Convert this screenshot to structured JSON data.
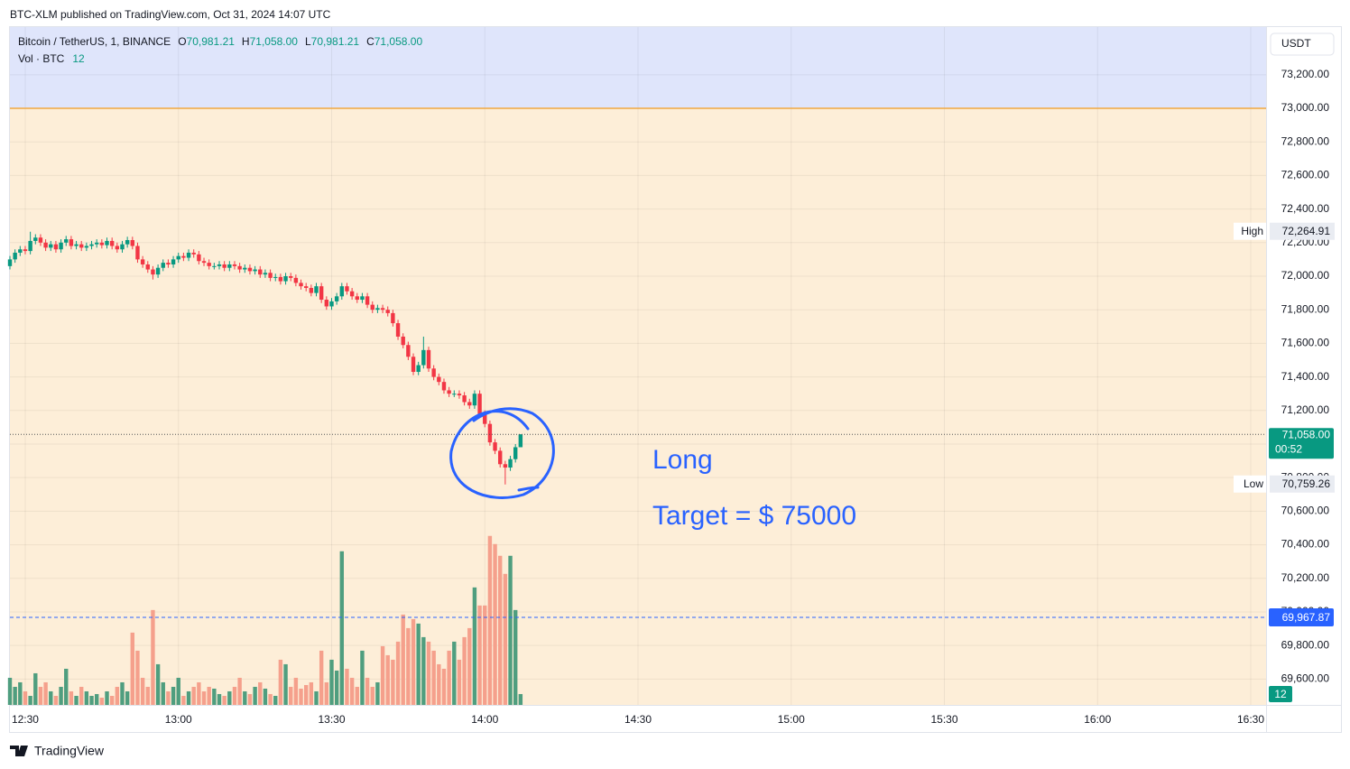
{
  "header": {
    "text": "BTC-XLM published on TradingView.com, Oct 31, 2024 14:07 UTC"
  },
  "footer": {
    "brand": "TradingView"
  },
  "chart_data": {
    "type": "candlestick",
    "legend": {
      "symbol": "Bitcoin / TetherUS, 1, BINANCE",
      "ohlc": [
        {
          "key": "O",
          "value": 70981.21,
          "label": "70,981.21"
        },
        {
          "key": "H",
          "value": 71058,
          "label": "71,058.00"
        },
        {
          "key": "L",
          "value": 70981.21,
          "label": "70,981.21"
        },
        {
          "key": "C",
          "value": 71058,
          "label": "71,058.00"
        }
      ],
      "volume_name": "Vol · BTC"
    },
    "currency": "USDT",
    "up_color": "#089981",
    "down_color": "#f23645",
    "volume_up_color": "#4f9e7f",
    "volume_down_color": "#f5a08c",
    "x": [
      "12:27",
      "12:28",
      "12:29",
      "12:30",
      "12:31",
      "12:32",
      "12:33",
      "12:34",
      "12:35",
      "12:36",
      "12:37",
      "12:38",
      "12:39",
      "12:40",
      "12:41",
      "12:42",
      "12:43",
      "12:44",
      "12:45",
      "12:46",
      "12:47",
      "12:48",
      "12:49",
      "12:50",
      "12:51",
      "12:52",
      "12:53",
      "12:54",
      "12:55",
      "12:56",
      "12:57",
      "12:58",
      "12:59",
      "13:00",
      "13:01",
      "13:02",
      "13:03",
      "13:04",
      "13:05",
      "13:06",
      "13:07",
      "13:08",
      "13:09",
      "13:10",
      "13:11",
      "13:12",
      "13:13",
      "13:14",
      "13:15",
      "13:16",
      "13:17",
      "13:18",
      "13:19",
      "13:20",
      "13:21",
      "13:22",
      "13:23",
      "13:24",
      "13:25",
      "13:26",
      "13:27",
      "13:28",
      "13:29",
      "13:30",
      "13:31",
      "13:32",
      "13:33",
      "13:34",
      "13:35",
      "13:36",
      "13:37",
      "13:38",
      "13:39",
      "13:40",
      "13:41",
      "13:42",
      "13:43",
      "13:44",
      "13:45",
      "13:46",
      "13:47",
      "13:48",
      "13:49",
      "13:50",
      "13:51",
      "13:52",
      "13:53",
      "13:54",
      "13:55",
      "13:56",
      "13:57",
      "13:58",
      "13:59",
      "14:00",
      "14:01",
      "14:02",
      "14:03",
      "14:04",
      "14:05",
      "14:06",
      "14:07"
    ],
    "opens": [
      72060,
      72100,
      72140,
      72160,
      72150,
      72210,
      72230,
      72200,
      72170,
      72190,
      72160,
      72200,
      72220,
      72180,
      72190,
      72170,
      72180,
      72190,
      72200,
      72185,
      72210,
      72180,
      72160,
      72190,
      72215,
      72180,
      72100,
      72070,
      72040,
      72010,
      72050,
      72080,
      72070,
      72100,
      72120,
      72110,
      72140,
      72130,
      72090,
      72080,
      72060,
      72060,
      72070,
      72050,
      72070,
      72060,
      72040,
      72050,
      72030,
      72040,
      72010,
      72020,
      71990,
      71995,
      71970,
      72000,
      71990,
      71960,
      71940,
      71930,
      71900,
      71940,
      71860,
      71820,
      71850,
      71880,
      71940,
      71910,
      71880,
      71860,
      71880,
      71830,
      71800,
      71810,
      71800,
      71780,
      71720,
      71640,
      71590,
      71520,
      71430,
      71470,
      71560,
      71450,
      71400,
      71370,
      71320,
      71300,
      71300,
      71290,
      71250,
      71230,
      71300,
      71180,
      71120,
      71010,
      70960,
      70880,
      70860,
      70910,
      70981.21
    ],
    "highs": [
      72120,
      72160,
      72180,
      72180,
      72264.91,
      72250,
      72250,
      72220,
      72210,
      72210,
      72220,
      72240,
      72240,
      72210,
      72210,
      72200,
      72210,
      72220,
      72220,
      72230,
      72230,
      72200,
      72210,
      72235,
      72235,
      72200,
      72120,
      72090,
      72060,
      72070,
      72100,
      72100,
      72120,
      72140,
      72140,
      72160,
      72160,
      72150,
      72110,
      72100,
      72080,
      72090,
      72090,
      72090,
      72090,
      72080,
      72070,
      72070,
      72060,
      72060,
      72040,
      72040,
      72015,
      72015,
      72020,
      72020,
      72010,
      71980,
      71960,
      71950,
      71960,
      71960,
      71880,
      71870,
      71900,
      71960,
      71960,
      71930,
      71900,
      71900,
      71900,
      71850,
      71830,
      71830,
      71820,
      71800,
      71740,
      71660,
      71610,
      71540,
      71490,
      71640,
      71580,
      71470,
      71420,
      71390,
      71340,
      71320,
      71320,
      71310,
      71270,
      71320,
      71320,
      71200,
      71140,
      71030,
      70980,
      70900,
      70930,
      71000,
      71058
    ],
    "lows": [
      72040,
      72080,
      72120,
      72130,
      72130,
      72190,
      72180,
      72150,
      72150,
      72140,
      72140,
      72180,
      72160,
      72160,
      72150,
      72150,
      72160,
      72170,
      72165,
      72165,
      72160,
      72140,
      72140,
      72170,
      72160,
      72080,
      72050,
      72020,
      71980,
      71990,
      72030,
      72050,
      72050,
      72080,
      72090,
      72090,
      72110,
      72070,
      72060,
      72040,
      72040,
      72040,
      72030,
      72030,
      72040,
      72020,
      72020,
      72010,
      72010,
      71990,
      71990,
      71970,
      71970,
      71950,
      71950,
      71970,
      71940,
      71920,
      71910,
      71880,
      71880,
      71840,
      71800,
      71800,
      71830,
      71860,
      71890,
      71860,
      71840,
      71840,
      71810,
      71780,
      71780,
      71780,
      71760,
      71700,
      71620,
      71570,
      71500,
      71410,
      71410,
      71450,
      71430,
      71380,
      71350,
      71300,
      71280,
      71280,
      71270,
      71230,
      71210,
      71210,
      71160,
      71100,
      70990,
      70940,
      70860,
      70759.26,
      70840,
      70890,
      70981.21
    ],
    "closes": [
      72100,
      72140,
      72160,
      72150,
      72210,
      72230,
      72200,
      72170,
      72190,
      72160,
      72200,
      72220,
      72180,
      72190,
      72170,
      72180,
      72190,
      72200,
      72185,
      72210,
      72180,
      72160,
      72190,
      72215,
      72180,
      72100,
      72070,
      72040,
      72010,
      72050,
      72080,
      72070,
      72100,
      72120,
      72110,
      72140,
      72130,
      72090,
      72080,
      72060,
      72060,
      72070,
      72050,
      72070,
      72060,
      72040,
      72050,
      72030,
      72040,
      72010,
      72020,
      71990,
      71995,
      71970,
      72000,
      71990,
      71960,
      71940,
      71930,
      71900,
      71940,
      71860,
      71820,
      71850,
      71880,
      71940,
      71910,
      71880,
      71860,
      71880,
      71830,
      71800,
      71810,
      71800,
      71780,
      71720,
      71640,
      71590,
      71520,
      71430,
      71470,
      71560,
      71450,
      71400,
      71370,
      71320,
      71300,
      71300,
      71290,
      71250,
      71230,
      71300,
      71180,
      71120,
      71010,
      70960,
      70880,
      70860,
      70910,
      70981.21,
      71058
    ],
    "volume": [
      30,
      20,
      25,
      15,
      10,
      35,
      20,
      25,
      15,
      10,
      20,
      40,
      15,
      10,
      20,
      15,
      10,
      12,
      8,
      15,
      10,
      20,
      25,
      15,
      80,
      60,
      30,
      20,
      105,
      45,
      25,
      15,
      20,
      30,
      10,
      15,
      20,
      25,
      15,
      20,
      18,
      12,
      10,
      15,
      20,
      30,
      15,
      12,
      20,
      25,
      18,
      12,
      10,
      50,
      45,
      20,
      30,
      18,
      22,
      25,
      15,
      60,
      25,
      50,
      38,
      170,
      40,
      30,
      20,
      60,
      30,
      20,
      25,
      65,
      55,
      50,
      70,
      100,
      85,
      95,
      90,
      75,
      70,
      60,
      45,
      40,
      60,
      70,
      50,
      75,
      85,
      130,
      110,
      110,
      187,
      178,
      165,
      145,
      165,
      105,
      12
    ],
    "xlim": [
      "12:27",
      "16:33"
    ],
    "xticks": [
      "12:30",
      "13:00",
      "13:30",
      "14:00",
      "14:30",
      "15:00",
      "15:30",
      "16:00",
      "16:30"
    ],
    "ylim": [
      69446,
      73484
    ],
    "yticks": [
      {
        "value": 69600,
        "label": "69,600.00"
      },
      {
        "value": 69800,
        "label": "69,800.00"
      },
      {
        "value": 70000,
        "label": "70,000.00"
      },
      {
        "value": 70200,
        "label": "70,200.00"
      },
      {
        "value": 70400,
        "label": "70,400.00"
      },
      {
        "value": 70600,
        "label": "70,600.00"
      },
      {
        "value": 70800,
        "label": "70,800.00"
      },
      {
        "value": 71000,
        "label": "71,000.00"
      },
      {
        "value": 71200,
        "label": "71,200.00"
      },
      {
        "value": 71400,
        "label": "71,400.00"
      },
      {
        "value": 71600,
        "label": "71,600.00"
      },
      {
        "value": 71800,
        "label": "71,800.00"
      },
      {
        "value": 72000,
        "label": "72,000.00"
      },
      {
        "value": 72200,
        "label": "72,200.00"
      },
      {
        "value": 72400,
        "label": "72,400.00"
      },
      {
        "value": 72600,
        "label": "72,600.00"
      },
      {
        "value": 72800,
        "label": "72,800.00"
      },
      {
        "value": 73000,
        "label": "73,000.00"
      },
      {
        "value": 73200,
        "label": "73,200.00"
      }
    ],
    "y2lim": [
      0,
      750
    ],
    "grid": true,
    "zone": {
      "level": 73000,
      "above_color": "#dfe5fb",
      "below_color": "#fdeed8",
      "line_color": "#f0a840"
    },
    "high_marker": {
      "name": "High",
      "value": 72264.91,
      "label": "72,264.91"
    },
    "low_marker": {
      "name": "Low",
      "value": 70759.26,
      "label": "70,759.26"
    },
    "last_price": {
      "value": 71058,
      "label": "71,058.00",
      "countdown": "00:52"
    },
    "level_line": {
      "value": 69967.87,
      "label": "69,967.87",
      "color": "#2962ff"
    },
    "annotations": [
      "Long",
      "Target = $ 75000"
    ]
  }
}
